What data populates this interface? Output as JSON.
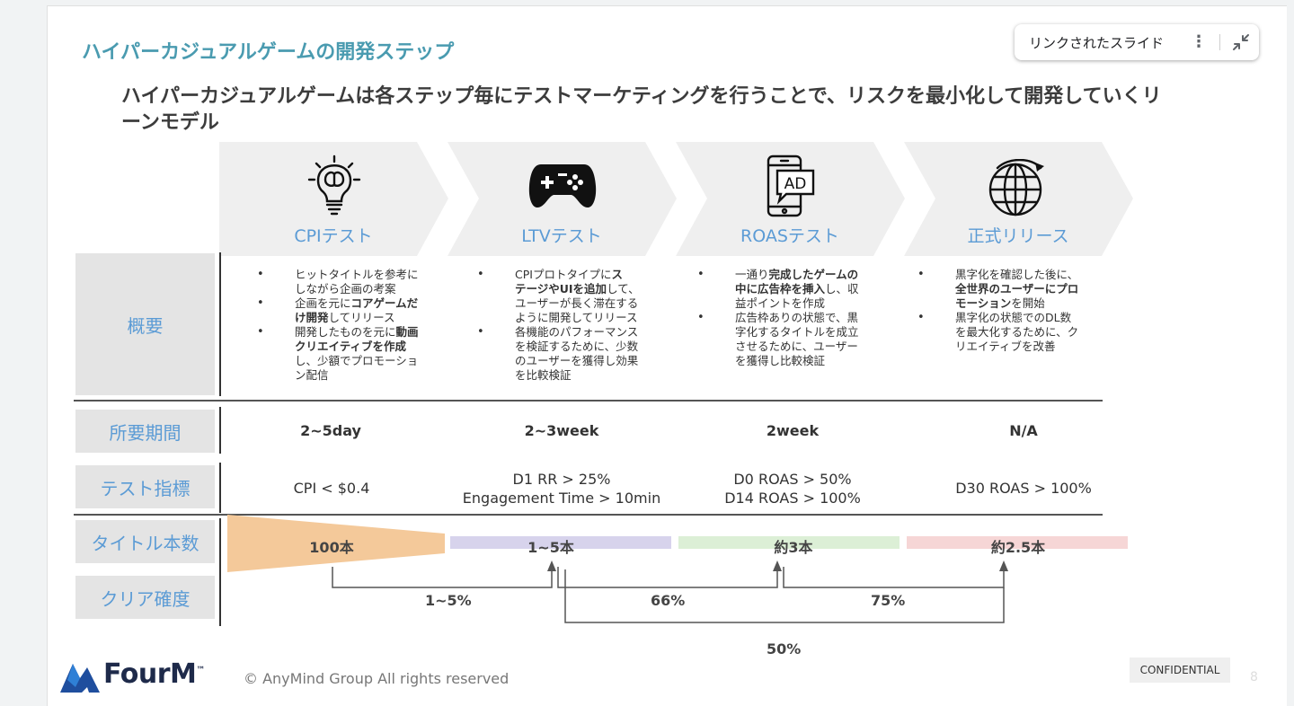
{
  "slide": {
    "title": "ハイパーカジュアルゲームの開発ステップ",
    "subtitle": "ハイパーカジュアルゲームは各ステップ毎にテストマーケティングを行うことで、リスクを最小化して開発していくリーンモデル"
  },
  "linked_slide": {
    "label": "リンクされたスライド",
    "menu_icon": "more-vert-icon",
    "minimize_icon": "collapse-icon"
  },
  "steps": [
    {
      "label": "CPIテスト",
      "icon": "lightbulb-brain-icon"
    },
    {
      "label": "LTVテスト",
      "icon": "gamepad-icon"
    },
    {
      "label": "ROASテスト",
      "icon": "phone-ad-icon"
    },
    {
      "label": "正式リリース",
      "icon": "globe-icon"
    }
  ],
  "row_labels": {
    "overview": "概要",
    "period": "所要期間",
    "metric": "テスト指標",
    "titles": "タイトル本数",
    "clear": "クリア確度"
  },
  "overview": [
    [
      [
        "ヒットタイトルを参考に",
        "しながら企画の考案"
      ],
      [
        "企画を元に",
        "コアゲームだ",
        "け開発",
        "してリリース"
      ],
      [
        "開発したものを元に",
        "動画",
        "クリエイティブを作成",
        "し、少額でプロモーショ",
        "ン配信"
      ]
    ],
    [
      [
        "CPIプロトタイプに",
        "ス",
        "テージやUIを追加",
        "して、",
        "ユーザーが長く滞在する",
        "ように開発してリリース"
      ],
      [
        "各機能のパフォーマンス",
        "を検証するために、少数",
        "のユーザーを獲得し効果",
        "を比較検証"
      ]
    ],
    [
      [
        "一通り",
        "完成したゲームの",
        "中に広告枠を挿入",
        "し、収",
        "益ポイントを作成"
      ],
      [
        "広告枠ありの状態で、黒",
        "字化するタイトルを成立",
        "させるために、ユーザー",
        "を獲得し比較検証"
      ]
    ],
    [
      [
        "黒字化を確認した後に、",
        "全世界のユーザーにプロ",
        "モーション",
        "を開始"
      ],
      [
        "黒字化の状態でのDL数",
        "を最大化するために、ク",
        "リエイティブを改善"
      ]
    ]
  ],
  "periods": [
    "2~5day",
    "2~3week",
    "2week",
    "N/A"
  ],
  "metrics": [
    [
      "CPI < $0.4"
    ],
    [
      "D1 RR > 25%",
      "Engagement Time > 10min"
    ],
    [
      "D0 ROAS > 50%",
      "D14 ROAS > 100%"
    ],
    [
      "D30 ROAS > 100%"
    ]
  ],
  "title_counts": [
    "100本",
    "1~5本",
    "約3本",
    "約2.5本"
  ],
  "bar_colors": [
    "#f4c99a",
    "#d7d3ec",
    "#dcefd6",
    "#f6d6d6"
  ],
  "clear_rates": {
    "cpi_to_ltv": "1~5%",
    "ltv_to_roas": "66%",
    "roas_to_release": "75%",
    "ltv_to_release": "50%"
  },
  "footer": {
    "logo": "FourM",
    "logo_tm": "™",
    "copyright": "© AnyMind Group All rights reserved",
    "confidential": "CONFIDENTIAL",
    "page": "8"
  }
}
